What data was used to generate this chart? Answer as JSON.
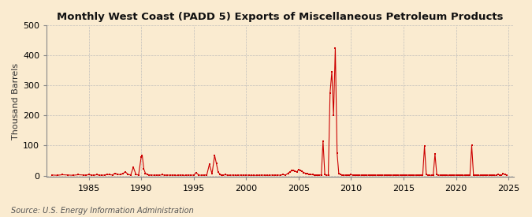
{
  "title": "Monthly West Coast (PADD 5) Exports of Miscellaneous Petroleum Products",
  "ylabel": "Thousand Barrels",
  "source": "Source: U.S. Energy Information Administration",
  "xlim": [
    1981.0,
    2025.5
  ],
  "ylim": [
    -5,
    500
  ],
  "yticks": [
    0,
    100,
    200,
    300,
    400,
    500
  ],
  "xticks": [
    1985,
    1990,
    1995,
    2000,
    2005,
    2010,
    2015,
    2020,
    2025
  ],
  "background_color": "#faebd0",
  "marker_color": "#cc0000",
  "line_color": "#cc0000",
  "grid_color": "#bbbbbb",
  "data_points": [
    [
      1981.5,
      2
    ],
    [
      1982.0,
      1
    ],
    [
      1982.5,
      3
    ],
    [
      1983.0,
      2
    ],
    [
      1983.5,
      1
    ],
    [
      1984.0,
      3
    ],
    [
      1984.5,
      2
    ],
    [
      1984.75,
      1
    ],
    [
      1985.0,
      4
    ],
    [
      1985.25,
      2
    ],
    [
      1985.5,
      1
    ],
    [
      1985.75,
      3
    ],
    [
      1986.0,
      2
    ],
    [
      1986.25,
      1
    ],
    [
      1986.5,
      2
    ],
    [
      1986.75,
      4
    ],
    [
      1987.0,
      3
    ],
    [
      1987.25,
      2
    ],
    [
      1987.5,
      8
    ],
    [
      1987.75,
      5
    ],
    [
      1988.0,
      3
    ],
    [
      1988.25,
      7
    ],
    [
      1988.5,
      12
    ],
    [
      1988.75,
      4
    ],
    [
      1989.0,
      2
    ],
    [
      1989.25,
      28
    ],
    [
      1989.5,
      4
    ],
    [
      1989.75,
      2
    ],
    [
      1990.0,
      62
    ],
    [
      1990.1,
      67
    ],
    [
      1990.25,
      22
    ],
    [
      1990.4,
      8
    ],
    [
      1990.6,
      4
    ],
    [
      1990.75,
      2
    ],
    [
      1991.0,
      2
    ],
    [
      1991.25,
      1
    ],
    [
      1991.5,
      2
    ],
    [
      1991.75,
      1
    ],
    [
      1992.0,
      3
    ],
    [
      1992.25,
      1
    ],
    [
      1992.5,
      2
    ],
    [
      1992.75,
      1
    ],
    [
      1993.0,
      2
    ],
    [
      1993.25,
      1
    ],
    [
      1993.5,
      1
    ],
    [
      1993.75,
      2
    ],
    [
      1994.0,
      1
    ],
    [
      1994.25,
      1
    ],
    [
      1994.5,
      2
    ],
    [
      1994.75,
      1
    ],
    [
      1995.0,
      2
    ],
    [
      1995.25,
      9
    ],
    [
      1995.5,
      2
    ],
    [
      1995.75,
      1
    ],
    [
      1996.0,
      2
    ],
    [
      1996.25,
      2
    ],
    [
      1996.5,
      38
    ],
    [
      1996.75,
      6
    ],
    [
      1997.0,
      67
    ],
    [
      1997.17,
      40
    ],
    [
      1997.33,
      12
    ],
    [
      1997.5,
      5
    ],
    [
      1997.67,
      2
    ],
    [
      1997.83,
      1
    ],
    [
      1998.0,
      3
    ],
    [
      1998.25,
      1
    ],
    [
      1998.5,
      1
    ],
    [
      1998.75,
      2
    ],
    [
      1999.0,
      1
    ],
    [
      1999.25,
      1
    ],
    [
      1999.5,
      2
    ],
    [
      1999.75,
      1
    ],
    [
      2000.0,
      2
    ],
    [
      2000.25,
      1
    ],
    [
      2000.5,
      1
    ],
    [
      2000.75,
      1
    ],
    [
      2001.0,
      1
    ],
    [
      2001.25,
      1
    ],
    [
      2001.5,
      2
    ],
    [
      2001.75,
      1
    ],
    [
      2002.0,
      1
    ],
    [
      2002.25,
      1
    ],
    [
      2002.5,
      2
    ],
    [
      2002.75,
      1
    ],
    [
      2003.0,
      2
    ],
    [
      2003.25,
      1
    ],
    [
      2003.5,
      4
    ],
    [
      2003.75,
      2
    ],
    [
      2004.0,
      8
    ],
    [
      2004.17,
      12
    ],
    [
      2004.33,
      16
    ],
    [
      2004.5,
      18
    ],
    [
      2004.67,
      15
    ],
    [
      2004.83,
      12
    ],
    [
      2005.0,
      20
    ],
    [
      2005.17,
      18
    ],
    [
      2005.33,
      14
    ],
    [
      2005.5,
      10
    ],
    [
      2005.67,
      8
    ],
    [
      2005.83,
      6
    ],
    [
      2006.0,
      5
    ],
    [
      2006.17,
      4
    ],
    [
      2006.33,
      3
    ],
    [
      2006.5,
      2
    ],
    [
      2006.67,
      2
    ],
    [
      2006.83,
      1
    ],
    [
      2007.0,
      2
    ],
    [
      2007.17,
      2
    ],
    [
      2007.33,
      115
    ],
    [
      2007.5,
      4
    ],
    [
      2007.67,
      2
    ],
    [
      2007.83,
      1
    ],
    [
      2008.0,
      275
    ],
    [
      2008.17,
      345
    ],
    [
      2008.33,
      200
    ],
    [
      2008.5,
      425
    ],
    [
      2008.67,
      75
    ],
    [
      2008.83,
      8
    ],
    [
      2009.0,
      4
    ],
    [
      2009.17,
      2
    ],
    [
      2009.33,
      1
    ],
    [
      2009.5,
      2
    ],
    [
      2009.67,
      1
    ],
    [
      2009.83,
      1
    ],
    [
      2010.0,
      3
    ],
    [
      2010.17,
      2
    ],
    [
      2010.33,
      1
    ],
    [
      2010.5,
      2
    ],
    [
      2010.67,
      1
    ],
    [
      2010.83,
      1
    ],
    [
      2011.0,
      2
    ],
    [
      2011.17,
      1
    ],
    [
      2011.33,
      1
    ],
    [
      2011.5,
      2
    ],
    [
      2011.67,
      1
    ],
    [
      2011.83,
      1
    ],
    [
      2012.0,
      2
    ],
    [
      2012.17,
      1
    ],
    [
      2012.33,
      1
    ],
    [
      2012.5,
      2
    ],
    [
      2012.67,
      1
    ],
    [
      2012.83,
      1
    ],
    [
      2013.0,
      2
    ],
    [
      2013.17,
      1
    ],
    [
      2013.33,
      1
    ],
    [
      2013.5,
      2
    ],
    [
      2013.67,
      1
    ],
    [
      2013.83,
      1
    ],
    [
      2014.0,
      2
    ],
    [
      2014.17,
      1
    ],
    [
      2014.33,
      1
    ],
    [
      2014.5,
      2
    ],
    [
      2014.67,
      1
    ],
    [
      2014.83,
      1
    ],
    [
      2015.0,
      2
    ],
    [
      2015.17,
      1
    ],
    [
      2015.33,
      1
    ],
    [
      2015.5,
      2
    ],
    [
      2015.67,
      1
    ],
    [
      2015.83,
      1
    ],
    [
      2016.0,
      2
    ],
    [
      2016.17,
      1
    ],
    [
      2016.33,
      1
    ],
    [
      2016.5,
      2
    ],
    [
      2016.67,
      1
    ],
    [
      2016.83,
      1
    ],
    [
      2017.0,
      98
    ],
    [
      2017.17,
      3
    ],
    [
      2017.33,
      2
    ],
    [
      2017.5,
      1
    ],
    [
      2017.67,
      1
    ],
    [
      2017.83,
      1
    ],
    [
      2018.0,
      72
    ],
    [
      2018.17,
      4
    ],
    [
      2018.33,
      2
    ],
    [
      2018.5,
      1
    ],
    [
      2018.67,
      1
    ],
    [
      2018.83,
      1
    ],
    [
      2019.0,
      2
    ],
    [
      2019.17,
      1
    ],
    [
      2019.33,
      1
    ],
    [
      2019.5,
      2
    ],
    [
      2019.67,
      1
    ],
    [
      2019.83,
      1
    ],
    [
      2020.0,
      2
    ],
    [
      2020.17,
      1
    ],
    [
      2020.33,
      1
    ],
    [
      2020.5,
      1
    ],
    [
      2020.67,
      1
    ],
    [
      2020.83,
      1
    ],
    [
      2021.0,
      2
    ],
    [
      2021.17,
      1
    ],
    [
      2021.33,
      1
    ],
    [
      2021.5,
      100
    ],
    [
      2021.67,
      2
    ],
    [
      2021.83,
      1
    ],
    [
      2022.0,
      2
    ],
    [
      2022.17,
      1
    ],
    [
      2022.33,
      1
    ],
    [
      2022.5,
      2
    ],
    [
      2022.67,
      1
    ],
    [
      2022.83,
      1
    ],
    [
      2023.0,
      2
    ],
    [
      2023.17,
      1
    ],
    [
      2023.33,
      1
    ],
    [
      2023.5,
      2
    ],
    [
      2023.67,
      1
    ],
    [
      2023.83,
      1
    ],
    [
      2024.0,
      4
    ],
    [
      2024.17,
      2
    ],
    [
      2024.33,
      1
    ],
    [
      2024.5,
      6
    ],
    [
      2024.67,
      3
    ],
    [
      2024.83,
      2
    ]
  ]
}
